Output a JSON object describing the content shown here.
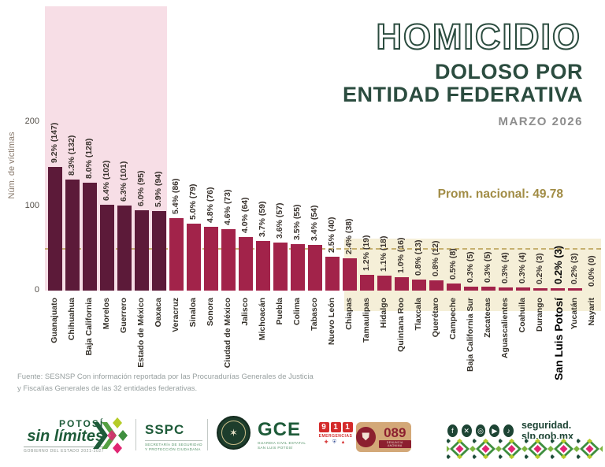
{
  "header": {
    "title": "HOMICIDIO",
    "subtitle_line1": "DOLOSO POR",
    "subtitle_line2": "ENTIDAD FEDERATIVA",
    "period": "MARZO 2026"
  },
  "chart_data": {
    "type": "bar",
    "title": "HOMICIDIO DOLOSO POR ENTIDAD FEDERATIVA — MARZO 2026",
    "ylabel": "Núm. de víctimas",
    "yticks": [
      0,
      100,
      200
    ],
    "ylim": [
      0,
      220
    ],
    "grid": false,
    "national_average_value": 49.78,
    "national_average_label": "Prom. nacional: 49.78",
    "highlight_count": 7,
    "bars": [
      {
        "state": "Guanajuato",
        "label": "9.2% (147)",
        "value": 147
      },
      {
        "state": "Chihuahua",
        "label": "8.3% (132)",
        "value": 132
      },
      {
        "state": "Baja California",
        "label": "8.0% (128)",
        "value": 128
      },
      {
        "state": "Morelos",
        "label": "6.4% (102)",
        "value": 102
      },
      {
        "state": "Guerrero",
        "label": "6.3% (101)",
        "value": 101
      },
      {
        "state": "Estado de México",
        "label": "6.0% (95)",
        "value": 95
      },
      {
        "state": "Oaxaca",
        "label": "5.9% (94)",
        "value": 94
      },
      {
        "state": "Veracruz",
        "label": "5.4% (86)",
        "value": 86
      },
      {
        "state": "Sinaloa",
        "label": "5.0% (79)",
        "value": 79
      },
      {
        "state": "Sonora",
        "label": "4.8% (76)",
        "value": 76
      },
      {
        "state": "Ciudad de México",
        "label": "4.6% (73)",
        "value": 73
      },
      {
        "state": "Jalisco",
        "label": "4.0% (64)",
        "value": 64
      },
      {
        "state": "Michoacán",
        "label": "3.7% (59)",
        "value": 59
      },
      {
        "state": "Puebla",
        "label": "3.6% (57)",
        "value": 57
      },
      {
        "state": "Colima",
        "label": "3.5% (55)",
        "value": 55
      },
      {
        "state": "Tabasco",
        "label": "3.4% (54)",
        "value": 54
      },
      {
        "state": "Nuevo León",
        "label": "2.5% (40)",
        "value": 40
      },
      {
        "state": "Chiapas",
        "label": "2.4% (38)",
        "value": 38
      },
      {
        "state": "Tamaulipas",
        "label": "1.2% (19)",
        "value": 19
      },
      {
        "state": "Hidalgo",
        "label": "1.1% (18)",
        "value": 18
      },
      {
        "state": "Quintana Roo",
        "label": "1.0% (16)",
        "value": 16
      },
      {
        "state": "Tlaxcala",
        "label": "0.8% (13)",
        "value": 13
      },
      {
        "state": "Querétaro",
        "label": "0.8% (12)",
        "value": 12
      },
      {
        "state": "Campeche",
        "label": "0.5% (8)",
        "value": 8
      },
      {
        "state": "Baja California Sur",
        "label": "0.3% (5)",
        "value": 5
      },
      {
        "state": "Zacatecas",
        "label": "0.3% (5)",
        "value": 5
      },
      {
        "state": "Aguascalientes",
        "label": "0.3% (4)",
        "value": 4
      },
      {
        "state": "Coahuila",
        "label": "0.3% (4)",
        "value": 4
      },
      {
        "state": "Durango",
        "label": "0.2% (3)",
        "value": 3
      },
      {
        "state": "San Luis Potosí",
        "label": "0.2% (3)",
        "value": 3,
        "emphasis": true
      },
      {
        "state": "Yucatán",
        "label": "0.2% (3)",
        "value": 3
      },
      {
        "state": "Nayarit",
        "label": "0.0% (0)",
        "value": 0
      }
    ]
  },
  "source": {
    "line1": "Fuente: SESNSP Con información reportada por las  Procuradurías Generales de Justicia",
    "line2": "y  Fiscalías Generales de las 32 entidades federativas."
  },
  "footer": {
    "potosi": {
      "top": "POTOSÍ",
      "main": "sin límites",
      "sub": "GOBIERNO DEL ESTADO 2021-2027"
    },
    "sspc": {
      "name": "SSPC",
      "sub1": "SECRETARÍA DE SEGURIDAD",
      "sub2": "Y PROTECCIÓN CIUDADANA"
    },
    "gce": {
      "name": "GCE",
      "sub1": "GUARDIA CIVIL ESTATAL",
      "sub2": "SAN LUIS POTOSÍ"
    },
    "e911": {
      "digits": [
        "9",
        "1",
        "1"
      ],
      "sub": "EMERGENCIAS"
    },
    "d089": {
      "num": "089",
      "sub": "DENUNCIA ANÓNIMA"
    },
    "url": "seguridad. slp.gob.mx"
  },
  "icons": {
    "facebook": "f",
    "x_twitter": "✕",
    "instagram": "◎",
    "youtube": "▶",
    "tiktok": "♪",
    "cross": "✚",
    "police": "⛨",
    "warning": "▲",
    "shield": "⛊",
    "seal_star": "✶"
  },
  "colors": {
    "bar_dark": "#5c1a39",
    "bar_light": "#a2234a",
    "pink_zone": "#f7dee6",
    "cream_zone": "#f5efd8",
    "accent_green": "#2b4c3f",
    "gold": "#a18c45"
  }
}
